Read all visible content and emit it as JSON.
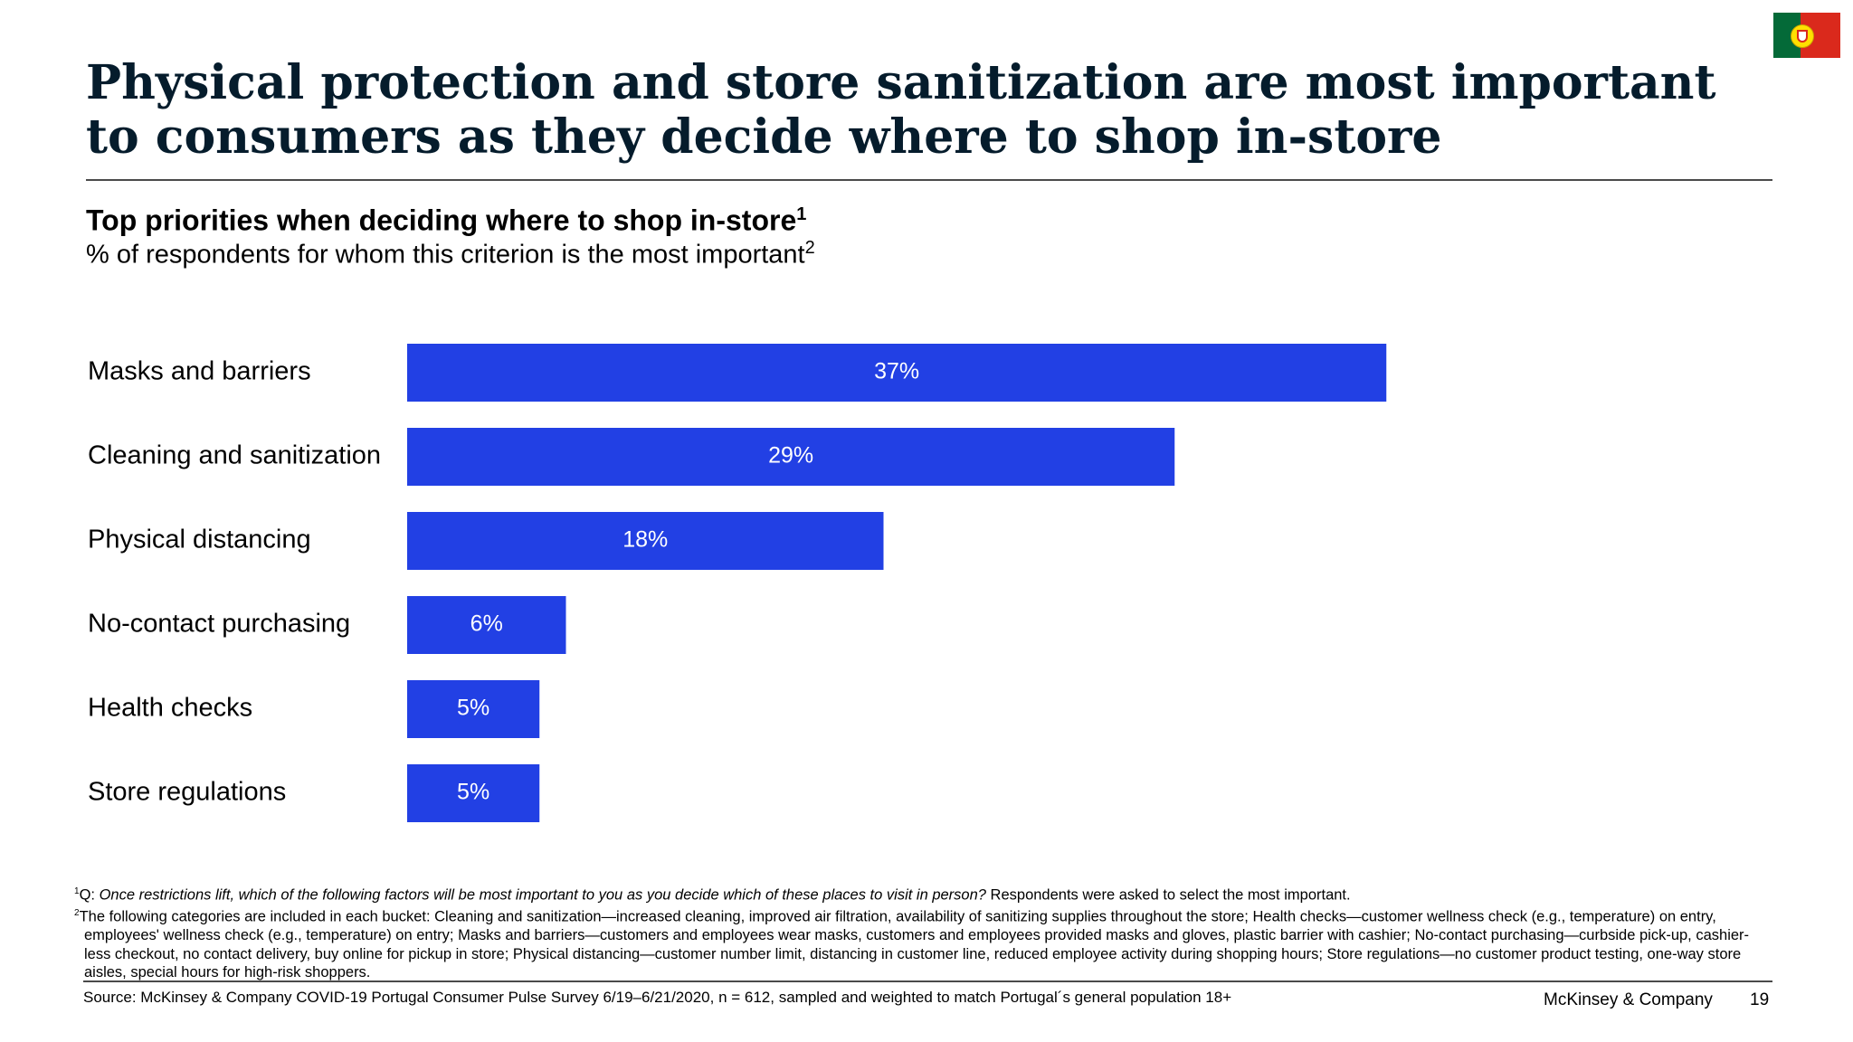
{
  "header": {
    "title": "Physical protection and store sanitization are most important to consumers as they decide where to shop in-store",
    "subtitle": "Top priorities when deciding where to shop in-store",
    "subtitle_sup": "1",
    "unit": "% of respondents for whom this criterion is the most important",
    "unit_sup": "2",
    "flag": "portugal-flag-icon"
  },
  "colors": {
    "bar": "#2240e4",
    "title": "#051c2c"
  },
  "chart_data": {
    "type": "bar",
    "orientation": "horizontal",
    "title": "Top priorities when deciding where to shop in-store",
    "categories": [
      "Masks and barriers",
      "Cleaning and sanitization",
      "Physical distancing",
      "No-contact purchasing",
      "Health checks",
      "Store regulations"
    ],
    "values": [
      37,
      29,
      18,
      6,
      5,
      5
    ],
    "labels": [
      "37%",
      "29%",
      "18%",
      "6%",
      "5%",
      "5%"
    ],
    "unit": "%",
    "xlim": [
      0,
      40
    ],
    "grid": false,
    "legend": "none"
  },
  "footnotes": {
    "fn1": {
      "marker": "1",
      "prefix": "Q: ",
      "question": "Once restrictions lift, which of the following factors will be most important to you as you decide which of these places to visit in person?",
      "rest": " Respondents were asked to select the most important."
    },
    "fn2": {
      "marker": "2",
      "text": "The following categories are included in each bucket: Cleaning and sanitization—increased cleaning, improved air filtration, availability of sanitizing supplies throughout the store; Health checks—customer wellness check (e.g., temperature) on entry, employees' wellness check (e.g., temperature) on entry; Masks and barriers—customers and employees wear masks, customers and employees provided masks and gloves, plastic barrier with cashier; No-contact purchasing—curbside pick-up, cashier-less checkout, no contact delivery, buy online for pickup in store; Physical distancing—customer number limit, distancing in customer line, reduced employee activity during shopping hours; Store regulations—no customer product testing, one-way store aisles, special hours for high-risk shoppers."
    }
  },
  "footer": {
    "source": "Source: McKinsey & Company COVID-19 Portugal Consumer Pulse Survey 6/19–6/21/2020, n = 612, sampled and weighted to match Portugal´s general population 18+",
    "brand": "McKinsey & Company",
    "page": "19"
  }
}
